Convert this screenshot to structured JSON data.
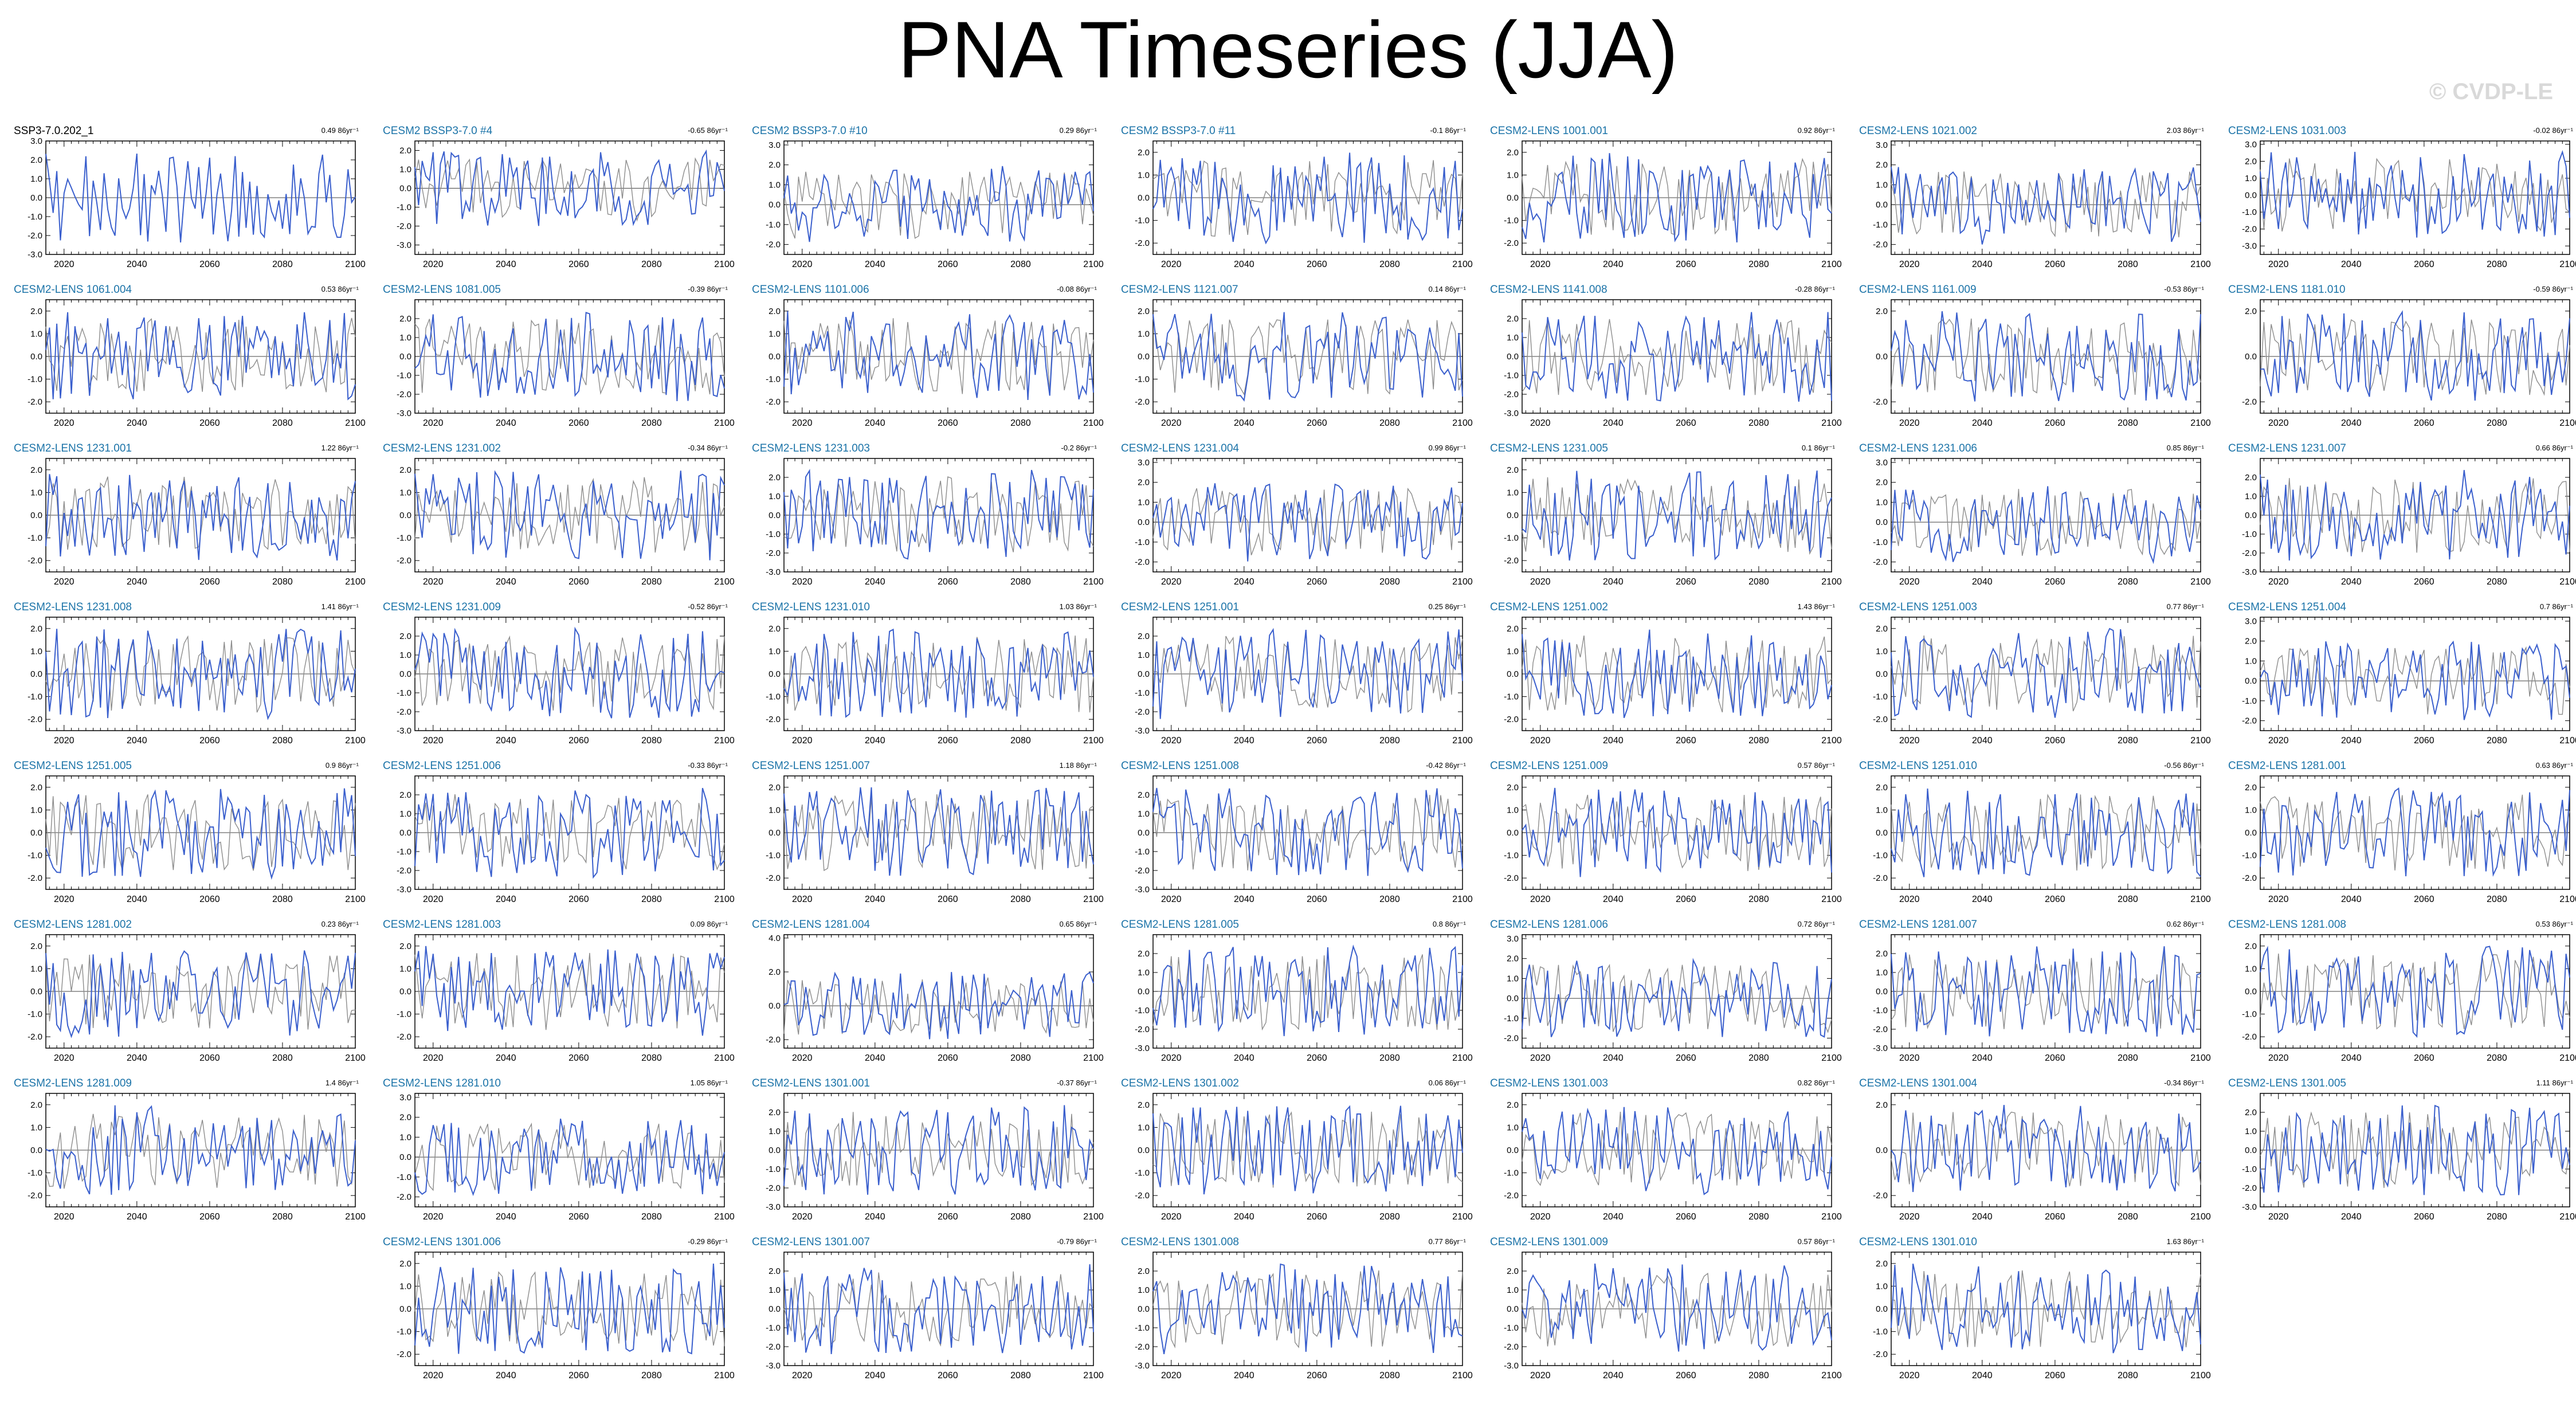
{
  "title": "PNA Timeseries (JJA)",
  "watermark": "© CVDP-LE",
  "colors": {
    "series": "#3a5fcd",
    "observed": "#8c8c8c",
    "title_text": "#1b73a8",
    "axis": "#000000"
  },
  "chart_data": {
    "type": "line",
    "xlabel": "",
    "ylabel": "",
    "x_ticks": [
      2020,
      2040,
      2060,
      2080,
      2100
    ],
    "xlim": [
      2015,
      2100
    ],
    "grid": false,
    "panels": [
      {
        "title": "SSP3-7.0.202_1",
        "trend": "0.49 86yr⁻¹",
        "ylim": [
          -3,
          3
        ],
        "y_ticks": [
          "3.0",
          "2.0",
          "1.0",
          "0.0",
          "-1.0",
          "-2.0",
          "-3.0"
        ]
      },
      {
        "title": "CESM2 BSSP3-7.0 #4",
        "trend": "-0.65 86yr⁻¹",
        "ylim": [
          -3.5,
          2.5
        ],
        "y_ticks": [
          "2.0",
          "1.0",
          "0.0",
          "-1.0",
          "-2.0",
          "-3.0"
        ]
      },
      {
        "title": "CESM2 BSSP3-7.0 #10",
        "trend": "0.29 86yr⁻¹",
        "ylim": [
          -2.5,
          3.2
        ],
        "y_ticks": [
          "3.0",
          "2.0",
          "1.0",
          "0.0",
          "-1.0",
          "-2.0"
        ]
      },
      {
        "title": "CESM2 BSSP3-7.0 #11",
        "trend": "-0.1 86yr⁻¹",
        "ylim": [
          -2.5,
          2.5
        ],
        "y_ticks": [
          "2.0",
          "1.0",
          "0.0",
          "-1.0",
          "-2.0"
        ]
      },
      {
        "title": "CESM2-LENS 1001.001",
        "trend": "0.92 86yr⁻¹",
        "ylim": [
          -2.5,
          2.5
        ],
        "y_ticks": [
          "2.0",
          "1.0",
          "0.0",
          "-1.0",
          "-2.0"
        ]
      },
      {
        "title": "CESM2-LENS 1021.002",
        "trend": "2.03 86yr⁻¹",
        "ylim": [
          -2.5,
          3.2
        ],
        "y_ticks": [
          "3.0",
          "2.0",
          "1.0",
          "0.0",
          "-1.0",
          "-2.0"
        ]
      },
      {
        "title": "CESM2-LENS 1031.003",
        "trend": "-0.02 86yr⁻¹",
        "ylim": [
          -3.5,
          3.2
        ],
        "y_ticks": [
          "3.0",
          "2.0",
          "1.0",
          "0.0",
          "-1.0",
          "-2.0",
          "-3.0"
        ]
      },
      {
        "title": "CESM2-LENS 1061.004",
        "trend": "0.53 86yr⁻¹",
        "ylim": [
          -2.5,
          2.5
        ],
        "y_ticks": [
          "2.0",
          "1.0",
          "0.0",
          "-1.0",
          "-2.0"
        ]
      },
      {
        "title": "CESM2-LENS 1081.005",
        "trend": "-0.39 86yr⁻¹",
        "ylim": [
          -3,
          3
        ],
        "y_ticks": [
          "2.0",
          "1.0",
          "0.0",
          "-1.0",
          "-2.0",
          "-3.0"
        ]
      },
      {
        "title": "CESM2-LENS 1101.006",
        "trend": "-0.08 86yr⁻¹",
        "ylim": [
          -2.5,
          2.5
        ],
        "y_ticks": [
          "2.0",
          "1.0",
          "0.0",
          "-1.0",
          "-2.0"
        ]
      },
      {
        "title": "CESM2-LENS 1121.007",
        "trend": "0.14 86yr⁻¹",
        "ylim": [
          -2.5,
          2.5
        ],
        "y_ticks": [
          "2.0",
          "1.0",
          "0.0",
          "-1.0",
          "-2.0"
        ]
      },
      {
        "title": "CESM2-LENS 1141.008",
        "trend": "-0.28 86yr⁻¹",
        "ylim": [
          -3,
          3
        ],
        "y_ticks": [
          "2.0",
          "1.0",
          "0.0",
          "-1.0",
          "-2.0",
          "-3.0"
        ]
      },
      {
        "title": "CESM2-LENS 1161.009",
        "trend": "-0.53 86yr⁻¹",
        "ylim": [
          -2.5,
          2.5
        ],
        "y_ticks": [
          "2.0",
          "0.0",
          "-2.0"
        ]
      },
      {
        "title": "CESM2-LENS 1181.010",
        "trend": "-0.59 86yr⁻¹",
        "ylim": [
          -2.5,
          2.5
        ],
        "y_ticks": [
          "2.0",
          "0.0",
          "-2.0"
        ]
      },
      {
        "title": "CESM2-LENS 1231.001",
        "trend": "1.22 86yr⁻¹",
        "ylim": [
          -2.5,
          2.5
        ],
        "y_ticks": [
          "2.0",
          "1.0",
          "0.0",
          "-1.0",
          "-2.0"
        ]
      },
      {
        "title": "CESM2-LENS 1231.002",
        "trend": "-0.34 86yr⁻¹",
        "ylim": [
          -2.5,
          2.5
        ],
        "y_ticks": [
          "2.0",
          "1.0",
          "0.0",
          "-1.0",
          "-2.0"
        ]
      },
      {
        "title": "CESM2-LENS 1231.003",
        "trend": "-0.2 86yr⁻¹",
        "ylim": [
          -3,
          3
        ],
        "y_ticks": [
          "2.0",
          "1.0",
          "0.0",
          "-1.0",
          "-2.0",
          "-3.0"
        ]
      },
      {
        "title": "CESM2-LENS 1231.004",
        "trend": "0.99 86yr⁻¹",
        "ylim": [
          -2.5,
          3.2
        ],
        "y_ticks": [
          "3.0",
          "2.0",
          "1.0",
          "0.0",
          "-1.0",
          "-2.0"
        ]
      },
      {
        "title": "CESM2-LENS 1231.005",
        "trend": "0.1 86yr⁻¹",
        "ylim": [
          -2.5,
          2.5
        ],
        "y_ticks": [
          "2.0",
          "1.0",
          "0.0",
          "-1.0",
          "-2.0"
        ]
      },
      {
        "title": "CESM2-LENS 1231.006",
        "trend": "0.85 86yr⁻¹",
        "ylim": [
          -2.5,
          3.2
        ],
        "y_ticks": [
          "3.0",
          "2.0",
          "1.0",
          "0.0",
          "-1.0",
          "-2.0"
        ]
      },
      {
        "title": "CESM2-LENS 1231.007",
        "trend": "0.66 86yr⁻¹",
        "ylim": [
          -3,
          3
        ],
        "y_ticks": [
          "2.0",
          "1.0",
          "0.0",
          "-1.0",
          "-2.0",
          "-3.0"
        ]
      },
      {
        "title": "CESM2-LENS 1231.008",
        "trend": "1.41 86yr⁻¹",
        "ylim": [
          -2.5,
          2.5
        ],
        "y_ticks": [
          "2.0",
          "1.0",
          "0.0",
          "-1.0",
          "-2.0"
        ]
      },
      {
        "title": "CESM2-LENS 1231.009",
        "trend": "-0.52 86yr⁻¹",
        "ylim": [
          -3,
          3
        ],
        "y_ticks": [
          "2.0",
          "1.0",
          "0.0",
          "-1.0",
          "-2.0",
          "-3.0"
        ]
      },
      {
        "title": "CESM2-LENS 1231.010",
        "trend": "1.03 86yr⁻¹",
        "ylim": [
          -2.5,
          2.5
        ],
        "y_ticks": [
          "2.0",
          "1.0",
          "0.0",
          "-1.0",
          "-2.0"
        ]
      },
      {
        "title": "CESM2-LENS 1251.001",
        "trend": "0.25 86yr⁻¹",
        "ylim": [
          -3,
          3
        ],
        "y_ticks": [
          "2.0",
          "1.0",
          "0.0",
          "-1.0",
          "-2.0",
          "-3.0"
        ]
      },
      {
        "title": "CESM2-LENS 1251.002",
        "trend": "1.43 86yr⁻¹",
        "ylim": [
          -2.5,
          2.5
        ],
        "y_ticks": [
          "2.0",
          "1.0",
          "0.0",
          "-1.0",
          "-2.0"
        ]
      },
      {
        "title": "CESM2-LENS 1251.003",
        "trend": "0.77 86yr⁻¹",
        "ylim": [
          -2.5,
          2.5
        ],
        "y_ticks": [
          "2.0",
          "1.0",
          "0.0",
          "-1.0",
          "-2.0"
        ]
      },
      {
        "title": "CESM2-LENS 1251.004",
        "trend": "0.7 86yr⁻¹",
        "ylim": [
          -2.5,
          3.2
        ],
        "y_ticks": [
          "3.0",
          "2.0",
          "1.0",
          "0.0",
          "-1.0",
          "-2.0"
        ]
      },
      {
        "title": "CESM2-LENS 1251.005",
        "trend": "0.9 86yr⁻¹",
        "ylim": [
          -2.5,
          2.5
        ],
        "y_ticks": [
          "2.0",
          "1.0",
          "0.0",
          "-1.0",
          "-2.0"
        ]
      },
      {
        "title": "CESM2-LENS 1251.006",
        "trend": "-0.33 86yr⁻¹",
        "ylim": [
          -3,
          3
        ],
        "y_ticks": [
          "2.0",
          "1.0",
          "0.0",
          "-1.0",
          "-2.0",
          "-3.0"
        ]
      },
      {
        "title": "CESM2-LENS 1251.007",
        "trend": "1.18 86yr⁻¹",
        "ylim": [
          -2.5,
          2.5
        ],
        "y_ticks": [
          "2.0",
          "1.0",
          "0.0",
          "-1.0",
          "-2.0"
        ]
      },
      {
        "title": "CESM2-LENS 1251.008",
        "trend": "-0.42 86yr⁻¹",
        "ylim": [
          -3,
          3
        ],
        "y_ticks": [
          "2.0",
          "1.0",
          "0.0",
          "-1.0",
          "-2.0",
          "-3.0"
        ]
      },
      {
        "title": "CESM2-LENS 1251.009",
        "trend": "0.57 86yr⁻¹",
        "ylim": [
          -2.5,
          2.5
        ],
        "y_ticks": [
          "2.0",
          "1.0",
          "0.0",
          "-1.0",
          "-2.0"
        ]
      },
      {
        "title": "CESM2-LENS 1251.010",
        "trend": "-0.56 86yr⁻¹",
        "ylim": [
          -2.5,
          2.5
        ],
        "y_ticks": [
          "2.0",
          "1.0",
          "0.0",
          "-1.0",
          "-2.0"
        ]
      },
      {
        "title": "CESM2-LENS 1281.001",
        "trend": "0.63 86yr⁻¹",
        "ylim": [
          -2.5,
          2.5
        ],
        "y_ticks": [
          "2.0",
          "1.0",
          "0.0",
          "-1.0",
          "-2.0"
        ]
      },
      {
        "title": "CESM2-LENS 1281.002",
        "trend": "0.23 86yr⁻¹",
        "ylim": [
          -2.5,
          2.5
        ],
        "y_ticks": [
          "2.0",
          "1.0",
          "0.0",
          "-1.0",
          "-2.0"
        ]
      },
      {
        "title": "CESM2-LENS 1281.003",
        "trend": "0.09 86yr⁻¹",
        "ylim": [
          -2.5,
          2.5
        ],
        "y_ticks": [
          "2.0",
          "1.0",
          "0.0",
          "-1.0",
          "-2.0"
        ]
      },
      {
        "title": "CESM2-LENS 1281.004",
        "trend": "0.65 86yr⁻¹",
        "ylim": [
          -2.5,
          4.2
        ],
        "y_ticks": [
          "4.0",
          "2.0",
          "0.0",
          "-2.0"
        ]
      },
      {
        "title": "CESM2-LENS 1281.005",
        "trend": "0.8 86yr⁻¹",
        "ylim": [
          -3,
          3
        ],
        "y_ticks": [
          "2.0",
          "1.0",
          "0.0",
          "-1.0",
          "-2.0",
          "-3.0"
        ]
      },
      {
        "title": "CESM2-LENS 1281.006",
        "trend": "0.72 86yr⁻¹",
        "ylim": [
          -2.5,
          3.2
        ],
        "y_ticks": [
          "3.0",
          "2.0",
          "1.0",
          "0.0",
          "-1.0",
          "-2.0"
        ]
      },
      {
        "title": "CESM2-LENS 1281.007",
        "trend": "0.62 86yr⁻¹",
        "ylim": [
          -3,
          3
        ],
        "y_ticks": [
          "2.0",
          "1.0",
          "0.0",
          "-1.0",
          "-2.0",
          "-3.0"
        ]
      },
      {
        "title": "CESM2-LENS 1281.008",
        "trend": "0.53 86yr⁻¹",
        "ylim": [
          -2.5,
          2.5
        ],
        "y_ticks": [
          "2.0",
          "1.0",
          "0.0",
          "-1.0",
          "-2.0"
        ]
      },
      {
        "title": "CESM2-LENS 1281.009",
        "trend": "1.4 86yr⁻¹",
        "ylim": [
          -2.5,
          2.5
        ],
        "y_ticks": [
          "2.0",
          "1.0",
          "0.0",
          "-1.0",
          "-2.0"
        ]
      },
      {
        "title": "CESM2-LENS 1281.010",
        "trend": "1.05 86yr⁻¹",
        "ylim": [
          -2.5,
          3.2
        ],
        "y_ticks": [
          "3.0",
          "2.0",
          "1.0",
          "0.0",
          "-1.0",
          "-2.0"
        ]
      },
      {
        "title": "CESM2-LENS 1301.001",
        "trend": "-0.37 86yr⁻¹",
        "ylim": [
          -3,
          3
        ],
        "y_ticks": [
          "2.0",
          "1.0",
          "0.0",
          "-1.0",
          "-2.0",
          "-3.0"
        ]
      },
      {
        "title": "CESM2-LENS 1301.002",
        "trend": "0.06 86yr⁻¹",
        "ylim": [
          -2.5,
          2.5
        ],
        "y_ticks": [
          "2.0",
          "1.0",
          "0.0",
          "-1.0",
          "-2.0"
        ]
      },
      {
        "title": "CESM2-LENS 1301.003",
        "trend": "0.82 86yr⁻¹",
        "ylim": [
          -2.5,
          2.5
        ],
        "y_ticks": [
          "2.0",
          "1.0",
          "0.0",
          "-1.0",
          "-2.0"
        ]
      },
      {
        "title": "CESM2-LENS 1301.004",
        "trend": "-0.34 86yr⁻¹",
        "ylim": [
          -2.5,
          2.5
        ],
        "y_ticks": [
          "2.0",
          "0.0",
          "-2.0"
        ]
      },
      {
        "title": "CESM2-LENS 1301.005",
        "trend": "1.11 86yr⁻¹",
        "ylim": [
          -3,
          3
        ],
        "y_ticks": [
          "2.0",
          "1.0",
          "0.0",
          "-1.0",
          "-2.0",
          "-3.0"
        ]
      },
      {
        "title": "CESM2-LENS 1301.006",
        "trend": "-0.29 86yr⁻¹",
        "ylim": [
          -2.5,
          2.5
        ],
        "y_ticks": [
          "2.0",
          "1.0",
          "0.0",
          "-1.0",
          "-2.0"
        ]
      },
      {
        "title": "CESM2-LENS 1301.007",
        "trend": "-0.79 86yr⁻¹",
        "ylim": [
          -3,
          3
        ],
        "y_ticks": [
          "2.0",
          "1.0",
          "0.0",
          "-1.0",
          "-2.0",
          "-3.0"
        ]
      },
      {
        "title": "CESM2-LENS 1301.008",
        "trend": "0.77 86yr⁻¹",
        "ylim": [
          -3,
          3
        ],
        "y_ticks": [
          "2.0",
          "1.0",
          "0.0",
          "-1.0",
          "-2.0",
          "-3.0"
        ]
      },
      {
        "title": "CESM2-LENS 1301.009",
        "trend": "0.57 86yr⁻¹",
        "ylim": [
          -3,
          3
        ],
        "y_ticks": [
          "2.0",
          "1.0",
          "0.0",
          "-1.0",
          "-2.0",
          "-3.0"
        ]
      },
      {
        "title": "CESM2-LENS 1301.010",
        "trend": "1.63 86yr⁻¹",
        "ylim": [
          -2.5,
          2.5
        ],
        "y_ticks": [
          "2.0",
          "1.0",
          "0.0",
          "-1.0",
          "-2.0"
        ]
      }
    ]
  }
}
